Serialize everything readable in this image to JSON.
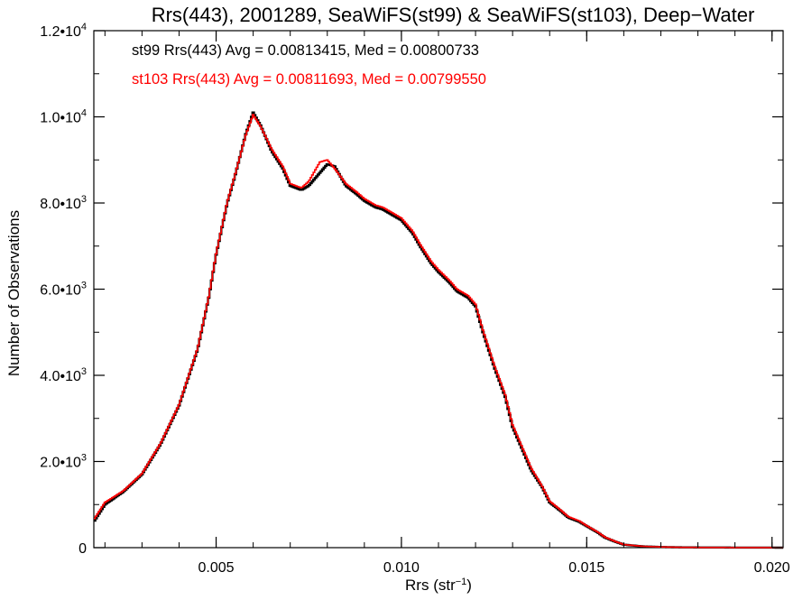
{
  "chart_data": {
    "type": "line",
    "style": "histogram-step",
    "title": "Rrs(443), 2001289, SeaWiFS(st99) & SeaWiFS(st103), Deep−Water",
    "xlabel": {
      "base": "Rrs (str",
      "sup": "−1",
      "close": ")"
    },
    "ylabel": "Number of Observations",
    "xlim": [
      0.0017,
      0.0203
    ],
    "ylim": [
      0,
      12000
    ],
    "grid": false,
    "x_ticks": [
      {
        "value": 0.005,
        "label": "0.005"
      },
      {
        "value": 0.01,
        "label": "0.010"
      },
      {
        "value": 0.015,
        "label": "0.015"
      },
      {
        "value": 0.02,
        "label": "0.020"
      }
    ],
    "y_ticks": [
      {
        "value": 0,
        "label": "0",
        "sup": ""
      },
      {
        "value": 2000,
        "label": "2.0•10",
        "sup": "3"
      },
      {
        "value": 4000,
        "label": "4.0•10",
        "sup": "3"
      },
      {
        "value": 6000,
        "label": "6.0•10",
        "sup": "3"
      },
      {
        "value": 8000,
        "label": "8.0•10",
        "sup": "3"
      },
      {
        "value": 10000,
        "label": "1.0•10",
        "sup": "4"
      },
      {
        "value": 12000,
        "label": "1.2•10",
        "sup": "4"
      }
    ],
    "annotations": [
      {
        "text": "st99 Rrs(443) Avg = 0.00813415, Med = 0.00800733",
        "color": "#000000"
      },
      {
        "text": "st103 Rrs(443) Avg = 0.00811693, Med = 0.00799550",
        "color": "#ff0000"
      }
    ],
    "x": [
      0.0017,
      0.002,
      0.0025,
      0.003,
      0.0035,
      0.004,
      0.0045,
      0.0048,
      0.005,
      0.0053,
      0.0055,
      0.0058,
      0.006,
      0.0062,
      0.0065,
      0.0068,
      0.007,
      0.0073,
      0.0075,
      0.0078,
      0.008,
      0.0082,
      0.0085,
      0.0088,
      0.009,
      0.0093,
      0.0095,
      0.0098,
      0.01,
      0.0103,
      0.0105,
      0.0108,
      0.011,
      0.0113,
      0.0115,
      0.0118,
      0.012,
      0.0122,
      0.0125,
      0.0128,
      0.013,
      0.0133,
      0.0135,
      0.0138,
      0.014,
      0.0143,
      0.0145,
      0.0148,
      0.015,
      0.0153,
      0.0155,
      0.0158,
      0.016,
      0.0165,
      0.017,
      0.0175,
      0.018,
      0.019,
      0.0203
    ],
    "series": [
      {
        "name": "st99",
        "color": "#000000",
        "values": [
          600,
          1000,
          1300,
          1700,
          2400,
          3300,
          4600,
          5800,
          6800,
          8000,
          8600,
          9600,
          10100,
          9800,
          9200,
          8800,
          8400,
          8300,
          8400,
          8700,
          8900,
          8850,
          8400,
          8200,
          8050,
          7900,
          7850,
          7700,
          7600,
          7300,
          7000,
          6600,
          6400,
          6150,
          5950,
          5800,
          5600,
          5000,
          4200,
          3500,
          2800,
          2200,
          1800,
          1400,
          1050,
          850,
          700,
          600,
          500,
          350,
          230,
          130,
          70,
          30,
          15,
          8,
          5,
          2,
          0
        ]
      },
      {
        "name": "st103",
        "color": "#ff0000",
        "values": [
          650,
          1050,
          1320,
          1720,
          2420,
          3320,
          4620,
          5820,
          6820,
          8020,
          8620,
          9580,
          10050,
          9780,
          9250,
          8850,
          8450,
          8350,
          8500,
          8950,
          9000,
          8800,
          8450,
          8250,
          8100,
          7950,
          7900,
          7750,
          7650,
          7350,
          7050,
          6650,
          6450,
          6200,
          6000,
          5850,
          5650,
          5050,
          4250,
          3550,
          2850,
          2250,
          1850,
          1420,
          1080,
          870,
          720,
          620,
          510,
          360,
          240,
          135,
          72,
          32,
          16,
          8,
          5,
          2,
          0
        ]
      }
    ]
  }
}
